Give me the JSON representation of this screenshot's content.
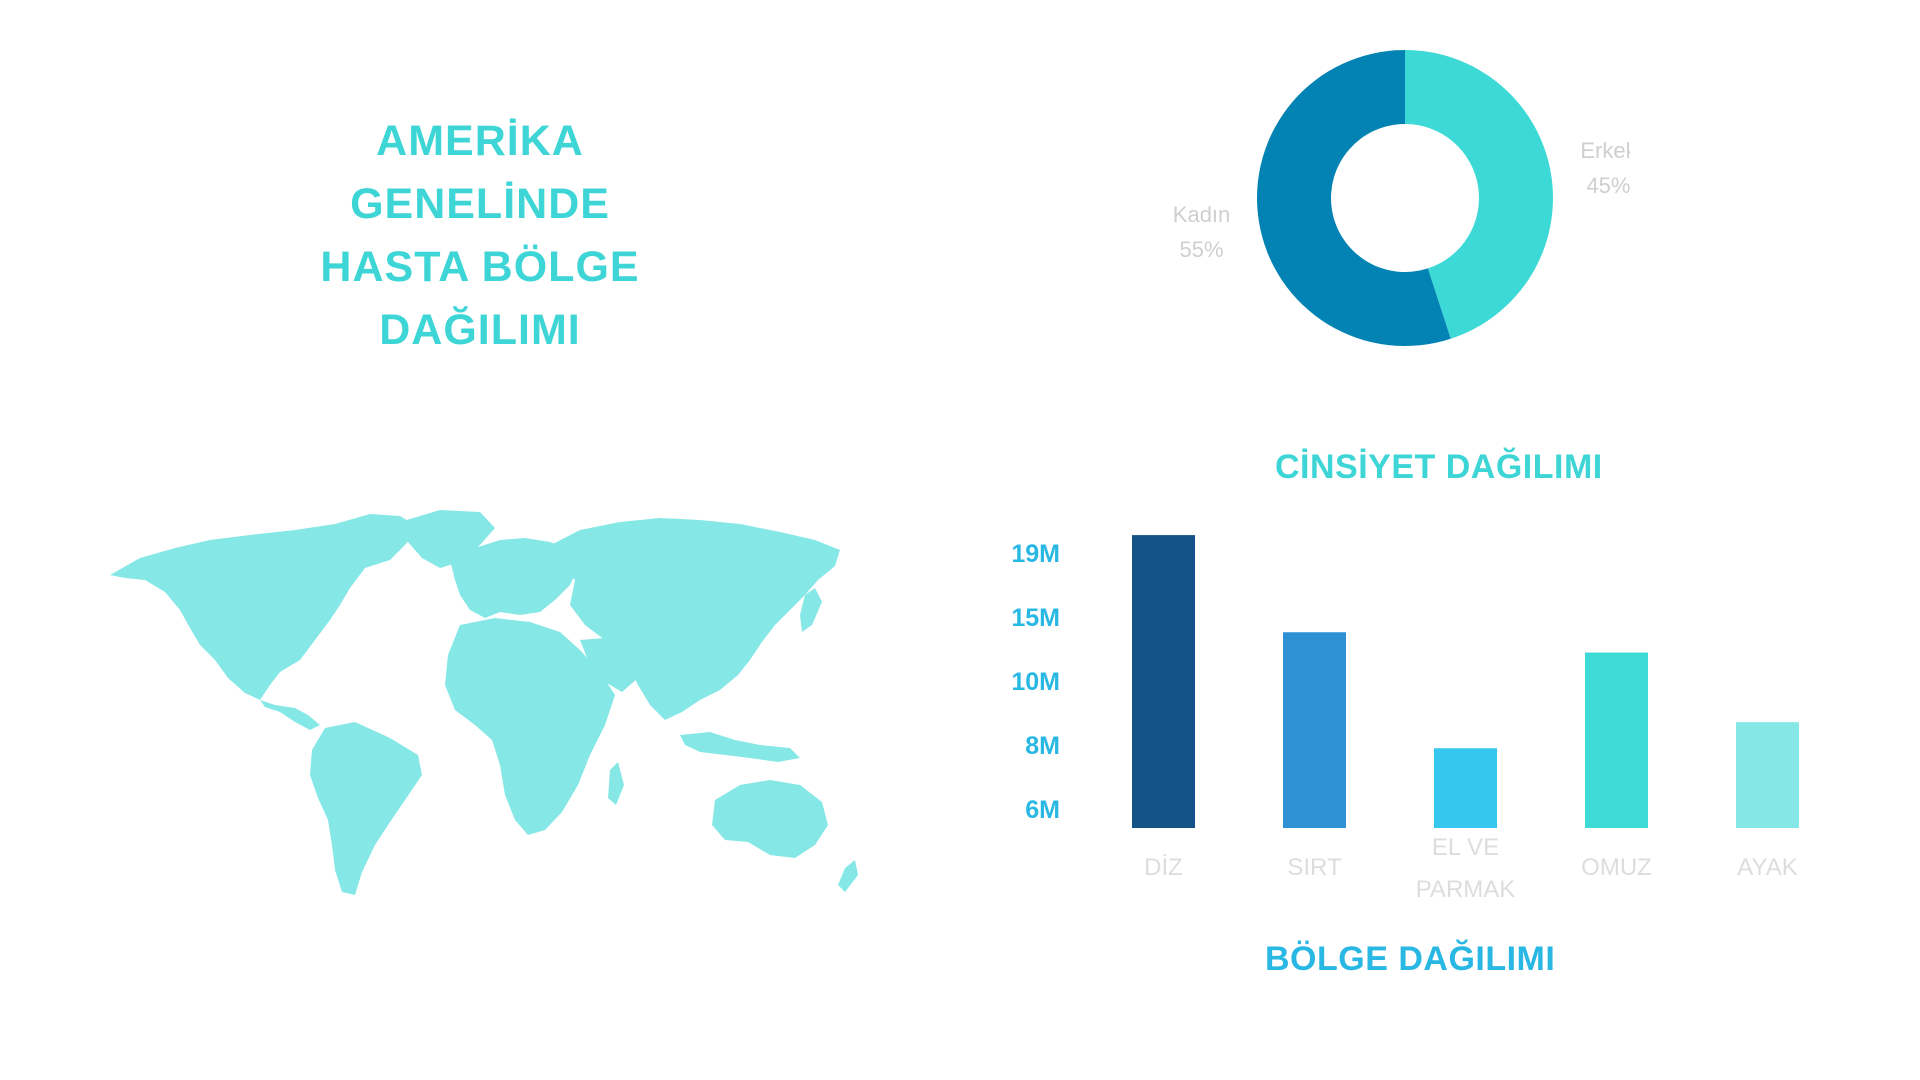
{
  "header": {
    "title_lines": [
      "AMERİKA",
      "GENELİNDE",
      "HASTA BÖLGE",
      "DAĞILIMI"
    ]
  },
  "gender_section": {
    "title": "CİNSİYET DAĞILIMI"
  },
  "region_section": {
    "title": "BÖLGE DAĞILIMI"
  },
  "colors": {
    "title": "#3dd5d5",
    "region_title": "#29b8e4",
    "tick": "#29b8e4",
    "map": "#86e7e7",
    "category_label": "#dddddd"
  },
  "chart_data": [
    {
      "type": "pie",
      "variant": "donut",
      "slices": [
        {
          "label": "Erkek",
          "value": 45,
          "display": "45%",
          "color": "#3dd9d6"
        },
        {
          "label": "Kadın",
          "value": 55,
          "display": "55%",
          "color": "#0283b3"
        }
      ]
    },
    {
      "type": "bar",
      "categories": [
        "DİZ",
        "SIRT",
        "EL VE PARMAK",
        "OMUZ",
        "AYAK"
      ],
      "category_label_lines": [
        [
          "DİZ"
        ],
        [
          "SIRT"
        ],
        [
          "EL VE",
          "PARMAK"
        ],
        [
          "OMUZ"
        ],
        [
          "AYAK"
        ]
      ],
      "values": [
        20.2,
        13.5,
        5.5,
        12.1,
        7.3
      ],
      "colors": [
        "#135387",
        "#2e91d4",
        "#35c7ee",
        "#3ddad6",
        "#86e7e7"
      ],
      "yticks": [
        "19M",
        "15M",
        "10M",
        "8M",
        "6M"
      ]
    }
  ]
}
